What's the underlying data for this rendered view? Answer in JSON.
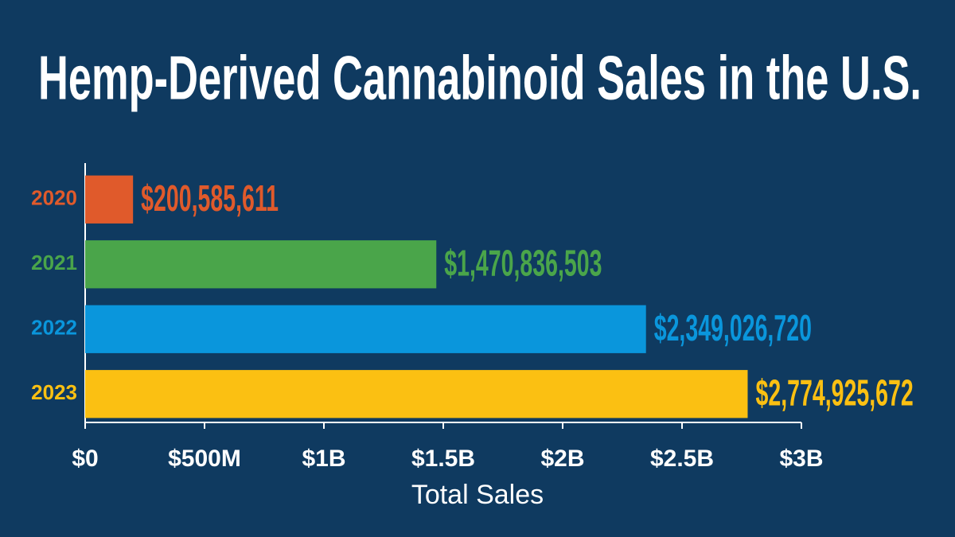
{
  "chart_data": {
    "type": "hbar",
    "title": "Hemp-Derived Cannabinoid Sales in the U.S.",
    "categories": [
      "2020",
      "2021",
      "2022",
      "2023"
    ],
    "values": [
      200585611,
      1470836503,
      2349026720,
      2774925672
    ],
    "value_labels": [
      "$200,585,611",
      "$1,470,836,503",
      "$2,349,026,720",
      "$2,774,925,672"
    ],
    "colors": [
      "#e05a2b",
      "#4aa54a",
      "#0a96dc",
      "#fbc012"
    ],
    "xlabel": "Total Sales",
    "xlim": [
      0,
      3000000000
    ],
    "xticks": [
      {
        "value": 0,
        "label": "$0"
      },
      {
        "value": 500000000,
        "label": "$500M"
      },
      {
        "value": 1000000000,
        "label": "$1B"
      },
      {
        "value": 1500000000,
        "label": "$1.5B"
      },
      {
        "value": 2000000000,
        "label": "$2B"
      },
      {
        "value": 2500000000,
        "label": "$2.5B"
      },
      {
        "value": 3000000000,
        "label": "$3B"
      }
    ]
  }
}
